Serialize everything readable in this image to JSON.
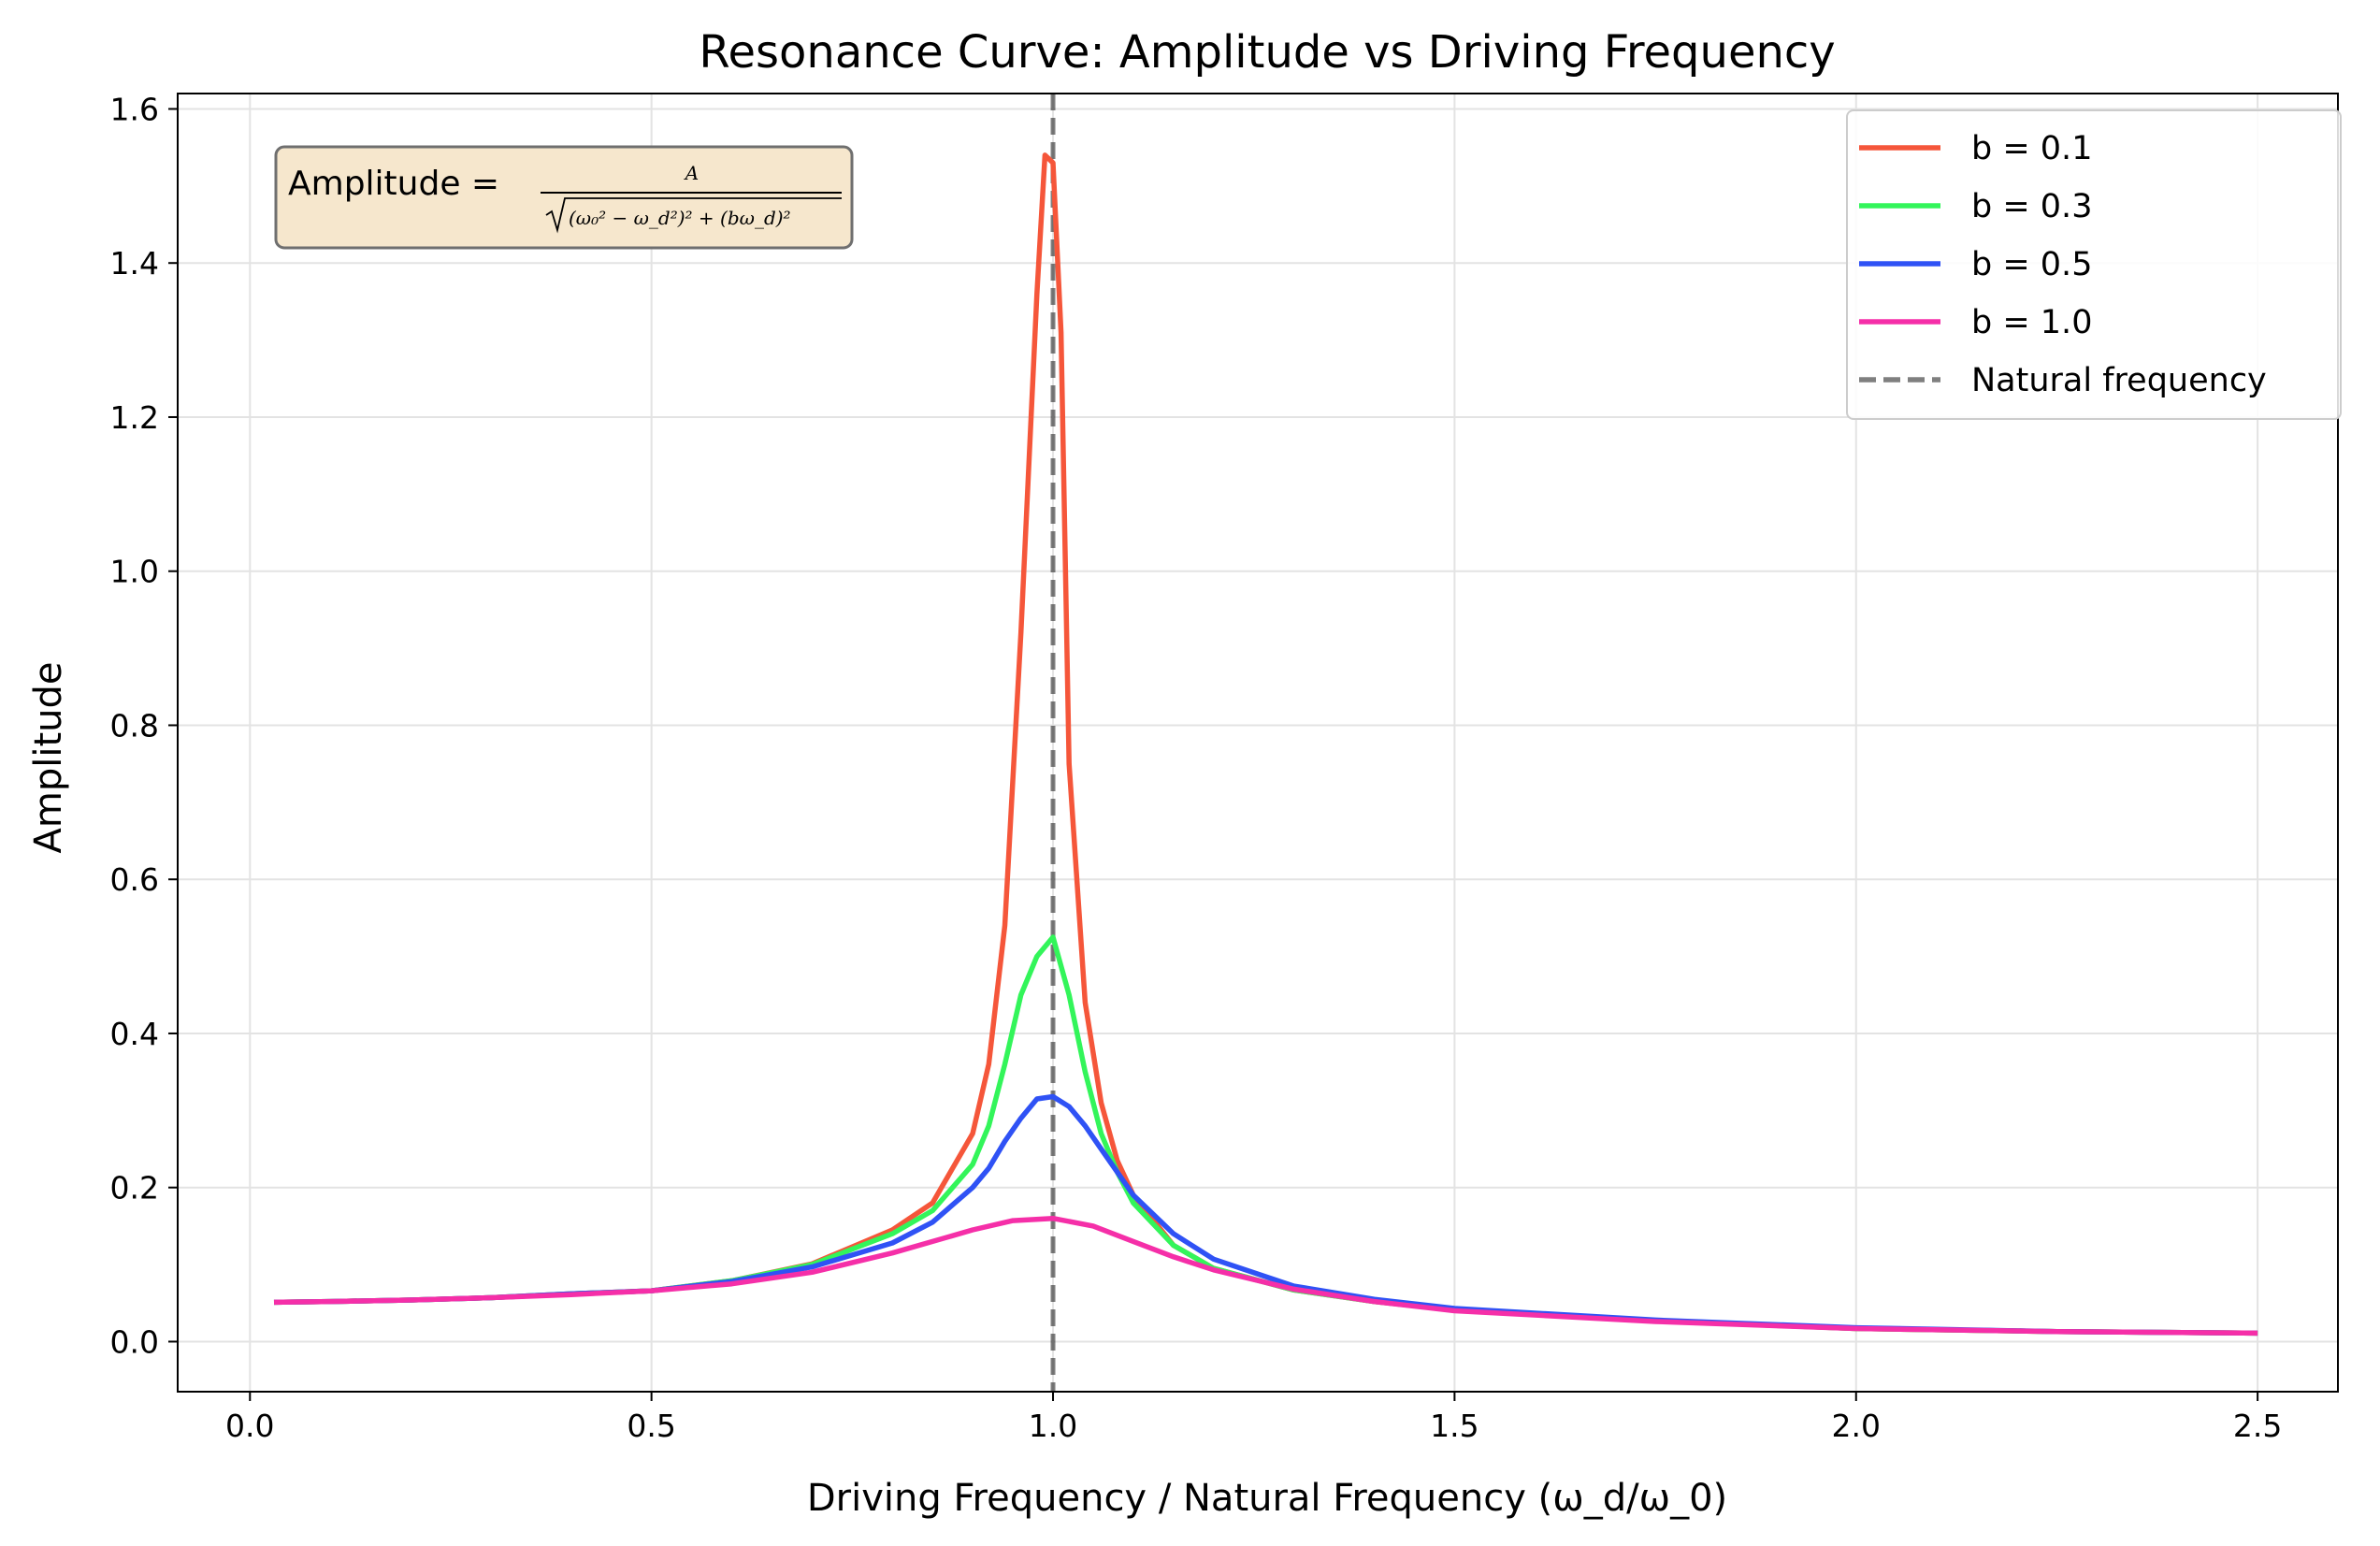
{
  "chart_data": {
    "type": "line",
    "title": "Resonance Curve: Amplitude vs Driving Frequency",
    "xlabel": "Driving Frequency / Natural Frequency (ω_d/ω_0)",
    "ylabel": "Amplitude",
    "xlim": [
      -0.09,
      2.6
    ],
    "ylim": [
      -0.065,
      1.62
    ],
    "xticks": [
      0.0,
      0.5,
      1.0,
      1.5,
      2.0,
      2.5
    ],
    "xtick_labels": [
      "0.0",
      "0.5",
      "1.0",
      "1.5",
      "2.0",
      "2.5"
    ],
    "yticks": [
      0.0,
      0.2,
      0.4,
      0.6,
      0.8,
      1.0,
      1.2,
      1.4,
      1.6
    ],
    "ytick_labels": [
      "0.0",
      "0.2",
      "0.4",
      "0.6",
      "0.8",
      "1.0",
      "1.2",
      "1.4",
      "1.6"
    ],
    "grid": true,
    "legend_position": "top-right",
    "natural_frequency": 1.0,
    "natural_frequency_label": "Natural frequency",
    "annotation": {
      "prefix": "Amplitude = ",
      "numerator": "A",
      "denominator": "(ω₀² − ω_d²)² + (bω_d)²"
    },
    "series": [
      {
        "name": "b = 0.1",
        "b": 0.1,
        "color": "#f5563a",
        "x": [
          0.03,
          0.1,
          0.2,
          0.3,
          0.4,
          0.5,
          0.6,
          0.7,
          0.8,
          0.85,
          0.9,
          0.92,
          0.94,
          0.96,
          0.98,
          0.99,
          1.0,
          1.01,
          1.02,
          1.04,
          1.06,
          1.08,
          1.1,
          1.15,
          1.2,
          1.3,
          1.4,
          1.5,
          1.75,
          2.0,
          2.25,
          2.5
        ],
        "y": [
          0.051,
          0.052,
          0.054,
          0.057,
          0.062,
          0.066,
          0.079,
          0.101,
          0.145,
          0.18,
          0.27,
          0.36,
          0.54,
          0.92,
          1.36,
          1.54,
          1.53,
          1.31,
          0.75,
          0.44,
          0.31,
          0.235,
          0.19,
          0.125,
          0.095,
          0.067,
          0.052,
          0.041,
          0.027,
          0.017,
          0.013,
          0.011
        ]
      },
      {
        "name": "b = 0.3",
        "b": 0.3,
        "color": "#33f55a",
        "x": [
          0.03,
          0.1,
          0.2,
          0.3,
          0.4,
          0.5,
          0.6,
          0.7,
          0.8,
          0.85,
          0.9,
          0.92,
          0.94,
          0.96,
          0.98,
          1.0,
          1.02,
          1.04,
          1.06,
          1.08,
          1.1,
          1.15,
          1.2,
          1.3,
          1.4,
          1.5,
          1.75,
          2.0,
          2.25,
          2.5
        ],
        "y": [
          0.051,
          0.052,
          0.054,
          0.057,
          0.062,
          0.066,
          0.079,
          0.1,
          0.14,
          0.17,
          0.23,
          0.28,
          0.36,
          0.45,
          0.5,
          0.525,
          0.45,
          0.35,
          0.27,
          0.22,
          0.18,
          0.125,
          0.095,
          0.067,
          0.052,
          0.041,
          0.027,
          0.017,
          0.013,
          0.011
        ]
      },
      {
        "name": "b = 0.5",
        "b": 0.5,
        "color": "#2f52f5",
        "x": [
          0.03,
          0.1,
          0.2,
          0.3,
          0.4,
          0.5,
          0.6,
          0.7,
          0.8,
          0.85,
          0.9,
          0.92,
          0.94,
          0.96,
          0.98,
          1.0,
          1.02,
          1.04,
          1.06,
          1.08,
          1.1,
          1.15,
          1.2,
          1.3,
          1.4,
          1.5,
          1.75,
          2.0,
          2.25,
          2.5
        ],
        "y": [
          0.051,
          0.052,
          0.054,
          0.057,
          0.062,
          0.066,
          0.078,
          0.097,
          0.128,
          0.155,
          0.2,
          0.225,
          0.26,
          0.29,
          0.315,
          0.318,
          0.305,
          0.28,
          0.25,
          0.22,
          0.19,
          0.14,
          0.107,
          0.072,
          0.055,
          0.043,
          0.028,
          0.018,
          0.013,
          0.011
        ]
      },
      {
        "name": "b = 1.0",
        "b": 1.0,
        "color": "#f52fa8",
        "x": [
          0.03,
          0.1,
          0.2,
          0.3,
          0.4,
          0.5,
          0.6,
          0.7,
          0.8,
          0.85,
          0.9,
          0.95,
          1.0,
          1.05,
          1.1,
          1.15,
          1.2,
          1.3,
          1.4,
          1.5,
          1.75,
          2.0,
          2.25,
          2.5
        ],
        "y": [
          0.051,
          0.052,
          0.054,
          0.057,
          0.061,
          0.066,
          0.075,
          0.09,
          0.115,
          0.13,
          0.145,
          0.157,
          0.16,
          0.15,
          0.13,
          0.11,
          0.093,
          0.068,
          0.052,
          0.04,
          0.026,
          0.017,
          0.013,
          0.011
        ]
      }
    ]
  }
}
